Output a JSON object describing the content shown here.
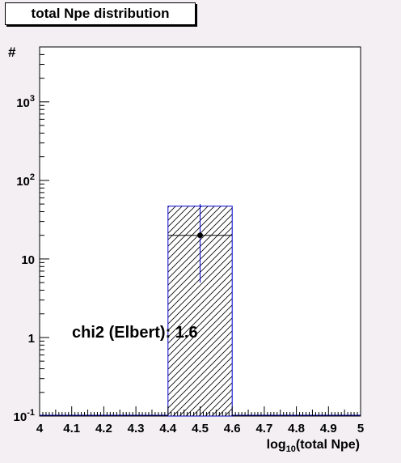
{
  "chart_data": {
    "type": "bar",
    "title": "total Npe distribution",
    "xlabel": "log10(total Npe)",
    "xlabel_base": "log",
    "xlabel_sub": "10",
    "xlabel_rest": "(total Npe)",
    "ylabel": "#",
    "xlim": [
      4,
      5
    ],
    "ylim": [
      0.1,
      5000
    ],
    "y_scale": "log",
    "x_ticks": [
      "4",
      "4.1",
      "4.2",
      "4.3",
      "4.4",
      "4.5",
      "4.6",
      "4.7",
      "4.8",
      "4.9",
      "5"
    ],
    "y_ticks": [
      {
        "value": 0.1,
        "base": "10",
        "exp": "-1"
      },
      {
        "value": 1,
        "base": "1",
        "exp": ""
      },
      {
        "value": 10,
        "base": "10",
        "exp": ""
      },
      {
        "value": 100,
        "base": "10",
        "exp": "2"
      },
      {
        "value": 1000,
        "base": "10",
        "exp": "3"
      }
    ],
    "histogram": {
      "bin_width": 0.2,
      "bin_low_edges": [
        4.0,
        4.2,
        4.4,
        4.6,
        4.8
      ],
      "values": [
        0,
        0,
        47,
        0,
        0
      ],
      "fill": "hatched",
      "color": "#0000cc"
    },
    "points": [
      {
        "x": 4.5,
        "y": 20,
        "y_err_low": 5,
        "y_err_high": 50,
        "x_err": 0.1
      }
    ],
    "annotation": "chi2 (Elbert): 1.6",
    "grid": false,
    "legend": "none"
  }
}
